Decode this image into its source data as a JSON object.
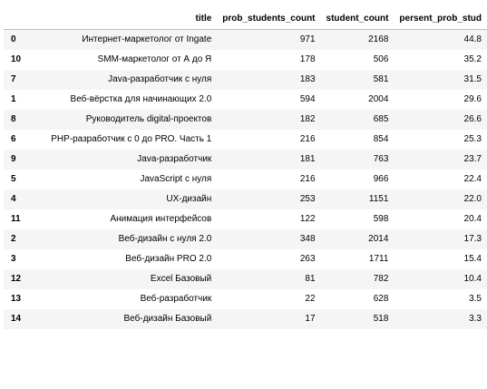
{
  "table": {
    "columns": {
      "index": "",
      "title": "title",
      "prob_students_count": "prob_students_count",
      "student_count": "student_count",
      "persent_prob_stud": "persent_prob_stud"
    },
    "rows": [
      {
        "index": "0",
        "title": "Интернет-маркетолог от Ingate",
        "prob_students_count": "971",
        "student_count": "2168",
        "persent_prob_stud": "44.8"
      },
      {
        "index": "10",
        "title": "SMM-маркетолог от А до Я",
        "prob_students_count": "178",
        "student_count": "506",
        "persent_prob_stud": "35.2"
      },
      {
        "index": "7",
        "title": "Java-разработчик с нуля",
        "prob_students_count": "183",
        "student_count": "581",
        "persent_prob_stud": "31.5"
      },
      {
        "index": "1",
        "title": "Веб-вёрстка для начинающих 2.0",
        "prob_students_count": "594",
        "student_count": "2004",
        "persent_prob_stud": "29.6"
      },
      {
        "index": "8",
        "title": "Руководитель digital-проектов",
        "prob_students_count": "182",
        "student_count": "685",
        "persent_prob_stud": "26.6"
      },
      {
        "index": "6",
        "title": "PHP-разработчик с 0 до PRO. Часть 1",
        "prob_students_count": "216",
        "student_count": "854",
        "persent_prob_stud": "25.3"
      },
      {
        "index": "9",
        "title": "Java-разработчик",
        "prob_students_count": "181",
        "student_count": "763",
        "persent_prob_stud": "23.7"
      },
      {
        "index": "5",
        "title": "JavaScript с нуля",
        "prob_students_count": "216",
        "student_count": "966",
        "persent_prob_stud": "22.4"
      },
      {
        "index": "4",
        "title": "UX-дизайн",
        "prob_students_count": "253",
        "student_count": "1151",
        "persent_prob_stud": "22.0"
      },
      {
        "index": "11",
        "title": "Анимация интерфейсов",
        "prob_students_count": "122",
        "student_count": "598",
        "persent_prob_stud": "20.4"
      },
      {
        "index": "2",
        "title": "Веб-дизайн с нуля 2.0",
        "prob_students_count": "348",
        "student_count": "2014",
        "persent_prob_stud": "17.3"
      },
      {
        "index": "3",
        "title": "Веб-дизайн PRO 2.0",
        "prob_students_count": "263",
        "student_count": "1711",
        "persent_prob_stud": "15.4"
      },
      {
        "index": "12",
        "title": "Excel Базовый",
        "prob_students_count": "81",
        "student_count": "782",
        "persent_prob_stud": "10.4"
      },
      {
        "index": "13",
        "title": "Веб-разработчик",
        "prob_students_count": "22",
        "student_count": "628",
        "persent_prob_stud": "3.5"
      },
      {
        "index": "14",
        "title": "Веб-дизайн Базовый",
        "prob_students_count": "17",
        "student_count": "518",
        "persent_prob_stud": "3.3"
      }
    ]
  }
}
